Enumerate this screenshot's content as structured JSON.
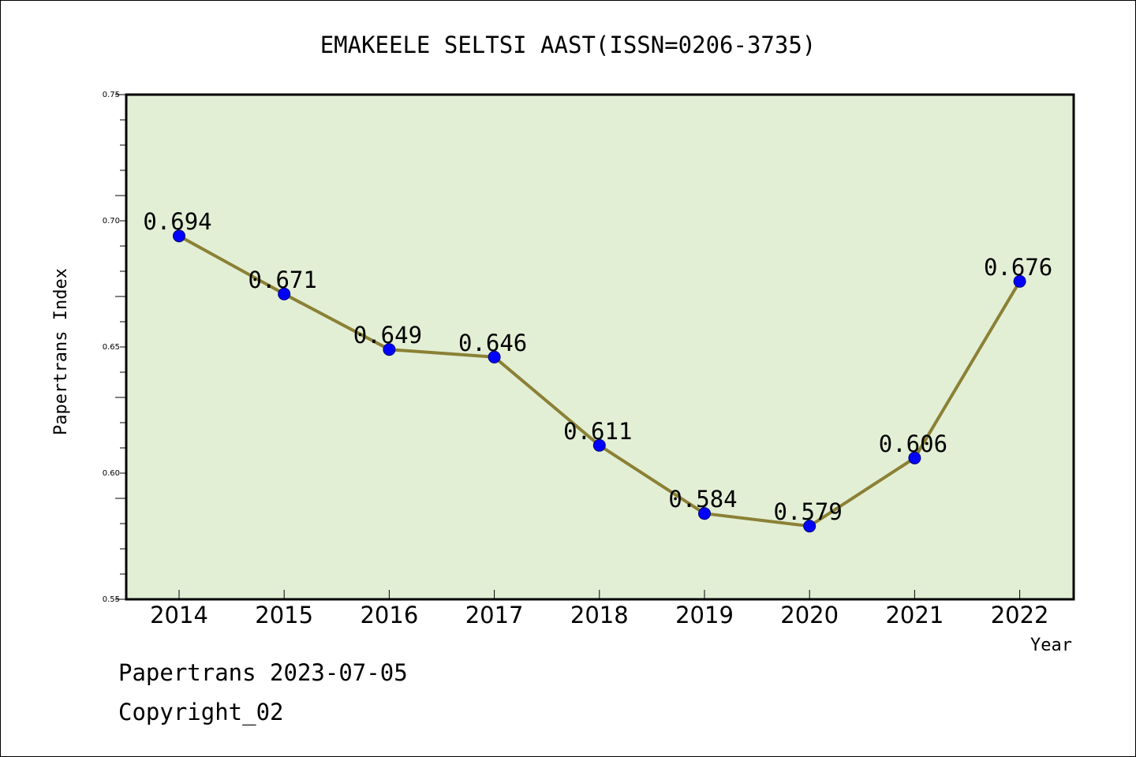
{
  "chart_data": {
    "type": "line",
    "title": "EMAKEELE SELTSI AAST(ISSN=0206-3735)",
    "xlabel": "Year",
    "ylabel": "Papertrans Index",
    "categories": [
      "2014",
      "2015",
      "2016",
      "2017",
      "2018",
      "2019",
      "2020",
      "2021",
      "2022"
    ],
    "values": [
      0.694,
      0.671,
      0.649,
      0.646,
      0.611,
      0.584,
      0.579,
      0.606,
      0.676
    ],
    "value_labels": [
      "0.694",
      "0.671",
      "0.649",
      "0.646",
      "0.611",
      "0.584",
      "0.579",
      "0.606",
      "0.676"
    ],
    "ylim": [
      0.55,
      0.75
    ],
    "yticks": [
      "0.55",
      "0.60",
      "0.65",
      "0.70",
      "0.75"
    ],
    "grid": false,
    "colors": {
      "plot_background": "#e2efd5",
      "line": "#8b8035",
      "marker": "#0000ff"
    }
  },
  "footer": {
    "source": "Papertrans 2023-07-05",
    "copyright": "Copyright_02"
  }
}
